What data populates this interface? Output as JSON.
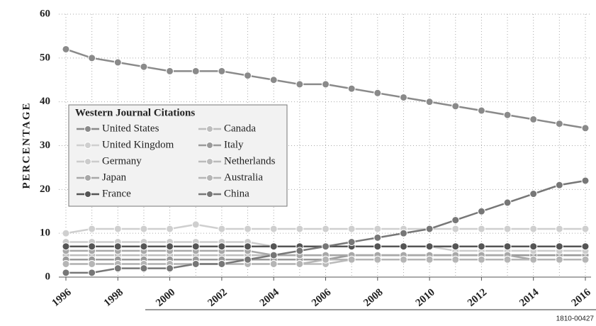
{
  "chart_data": {
    "type": "line",
    "ylabel": "PERCENTAGE",
    "legend_title": "Western Journal Citations",
    "footnote": "1810-00427",
    "x": [
      1996,
      1997,
      1998,
      1999,
      2000,
      2001,
      2002,
      2003,
      2004,
      2005,
      2006,
      2007,
      2008,
      2009,
      2010,
      2011,
      2012,
      2013,
      2014,
      2015,
      2016
    ],
    "xlim": [
      1996,
      2016
    ],
    "xticks": [
      1996,
      1998,
      2000,
      2002,
      2004,
      2006,
      2008,
      2010,
      2012,
      2014,
      2016
    ],
    "ylim": [
      0,
      60
    ],
    "yticks": [
      0,
      10,
      20,
      30,
      40,
      50,
      60
    ],
    "grid": true,
    "legend": "center left",
    "series": [
      {
        "name": "United States",
        "color": "#8a8a8a",
        "values": [
          52,
          50,
          49,
          48,
          47,
          47,
          47,
          46,
          45,
          44,
          44,
          43,
          42,
          41,
          40,
          39,
          38,
          37,
          36,
          35,
          34
        ]
      },
      {
        "name": "Canada",
        "color": "#bdbdbd",
        "values": [
          5,
          5,
          5,
          5,
          5,
          5,
          5,
          5,
          5,
          5,
          5,
          5,
          5,
          5,
          5,
          5,
          5,
          5,
          5,
          5,
          5
        ]
      },
      {
        "name": "United Kingdom",
        "color": "#cfcfcf",
        "values": [
          10,
          11,
          11,
          11,
          11,
          12,
          11,
          11,
          11,
          11,
          11,
          11,
          11,
          11,
          11,
          11,
          11,
          11,
          11,
          11,
          11
        ]
      },
      {
        "name": "Italy",
        "color": "#9a9a9a",
        "values": [
          4,
          4,
          4,
          4,
          4,
          4,
          4,
          4,
          4,
          4,
          4,
          5,
          5,
          5,
          5,
          5,
          5,
          5,
          5,
          5,
          5
        ]
      },
      {
        "name": "Germany",
        "color": "#cccccc",
        "values": [
          8,
          8,
          8,
          8,
          8,
          8,
          8,
          8,
          7,
          7,
          7,
          7,
          7,
          7,
          7,
          6,
          6,
          6,
          6,
          6,
          6
        ]
      },
      {
        "name": "Netherlands",
        "color": "#bbbbbb",
        "values": [
          3,
          3,
          3,
          3,
          3,
          3,
          3,
          3,
          3,
          3,
          3,
          4,
          4,
          4,
          4,
          4,
          4,
          4,
          4,
          4,
          4
        ]
      },
      {
        "name": "Japan",
        "color": "#a8a8a8",
        "values": [
          6,
          6,
          6,
          6,
          6,
          6,
          6,
          6,
          5,
          5,
          5,
          5,
          5,
          5,
          5,
          5,
          5,
          5,
          4,
          4,
          4
        ]
      },
      {
        "name": "Australia",
        "color": "#b5b5b5",
        "values": [
          3,
          3,
          3,
          3,
          3,
          3,
          3,
          3,
          3,
          3,
          4,
          4,
          4,
          4,
          4,
          4,
          4,
          4,
          4,
          4,
          4
        ]
      },
      {
        "name": "France",
        "color": "#555555",
        "values": [
          7,
          7,
          7,
          7,
          7,
          7,
          7,
          7,
          7,
          7,
          7,
          7,
          7,
          7,
          7,
          7,
          7,
          7,
          7,
          7,
          7
        ]
      },
      {
        "name": "China",
        "color": "#777777",
        "values": [
          1,
          1,
          2,
          2,
          2,
          3,
          3,
          4,
          5,
          6,
          7,
          8,
          9,
          10,
          11,
          13,
          15,
          17,
          19,
          21,
          22
        ]
      }
    ]
  }
}
